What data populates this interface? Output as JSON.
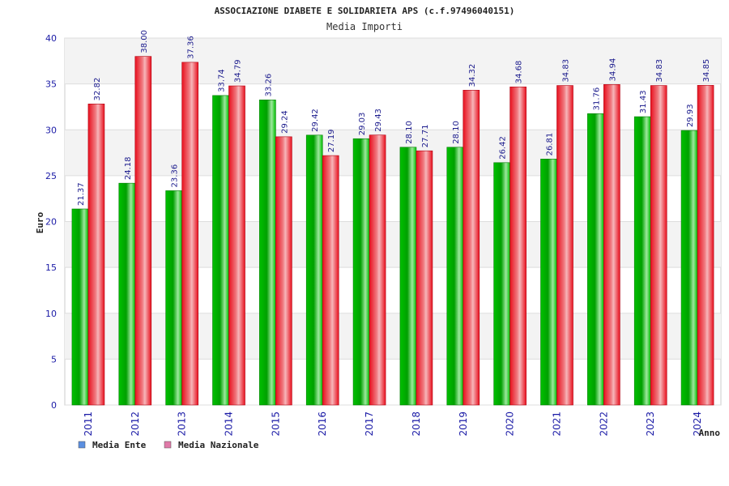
{
  "chart_data": {
    "type": "bar",
    "title": "ASSOCIAZIONE DIABETE E SOLIDARIETA APS (c.f.97496040151)",
    "subtitle": "Media Importi",
    "xlabel": "Anno",
    "ylabel": "Euro",
    "ylim": [
      0,
      40
    ],
    "yticks": [
      0,
      5,
      10,
      15,
      20,
      25,
      30,
      35,
      40
    ],
    "categories": [
      "2011",
      "2012",
      "2013",
      "2014",
      "2015",
      "2016",
      "2017",
      "2018",
      "2019",
      "2020",
      "2021",
      "2022",
      "2023",
      "2024"
    ],
    "series": [
      {
        "name": "Media Ente",
        "legend_color": "#5b8fe0",
        "bar_color": "#00b000",
        "values": [
          21.37,
          24.18,
          23.36,
          33.74,
          33.26,
          29.42,
          29.03,
          28.1,
          28.1,
          26.42,
          26.81,
          31.76,
          31.43,
          29.93
        ],
        "labels": [
          "21.37",
          "24.18",
          "23.36",
          "33.74",
          "33.26",
          "29.42",
          "29.03",
          "28.10",
          "28.10",
          "26.42",
          "26.81",
          "31.76",
          "31.43",
          "29.93"
        ]
      },
      {
        "name": "Media Nazionale",
        "legend_color": "#e07aa8",
        "bar_color": "#e8101e",
        "values": [
          32.82,
          38.0,
          37.36,
          34.79,
          29.24,
          27.19,
          29.43,
          27.71,
          34.32,
          34.68,
          34.83,
          34.94,
          34.83,
          34.85
        ],
        "labels": [
          "32.82",
          "38.00",
          "37.36",
          "34.79",
          "29.24",
          "27.19",
          "29.43",
          "27.71",
          "34.32",
          "34.68",
          "34.83",
          "34.94",
          "34.83",
          "34.85"
        ]
      }
    ],
    "grid": true,
    "legend_position": "bottom-left"
  }
}
